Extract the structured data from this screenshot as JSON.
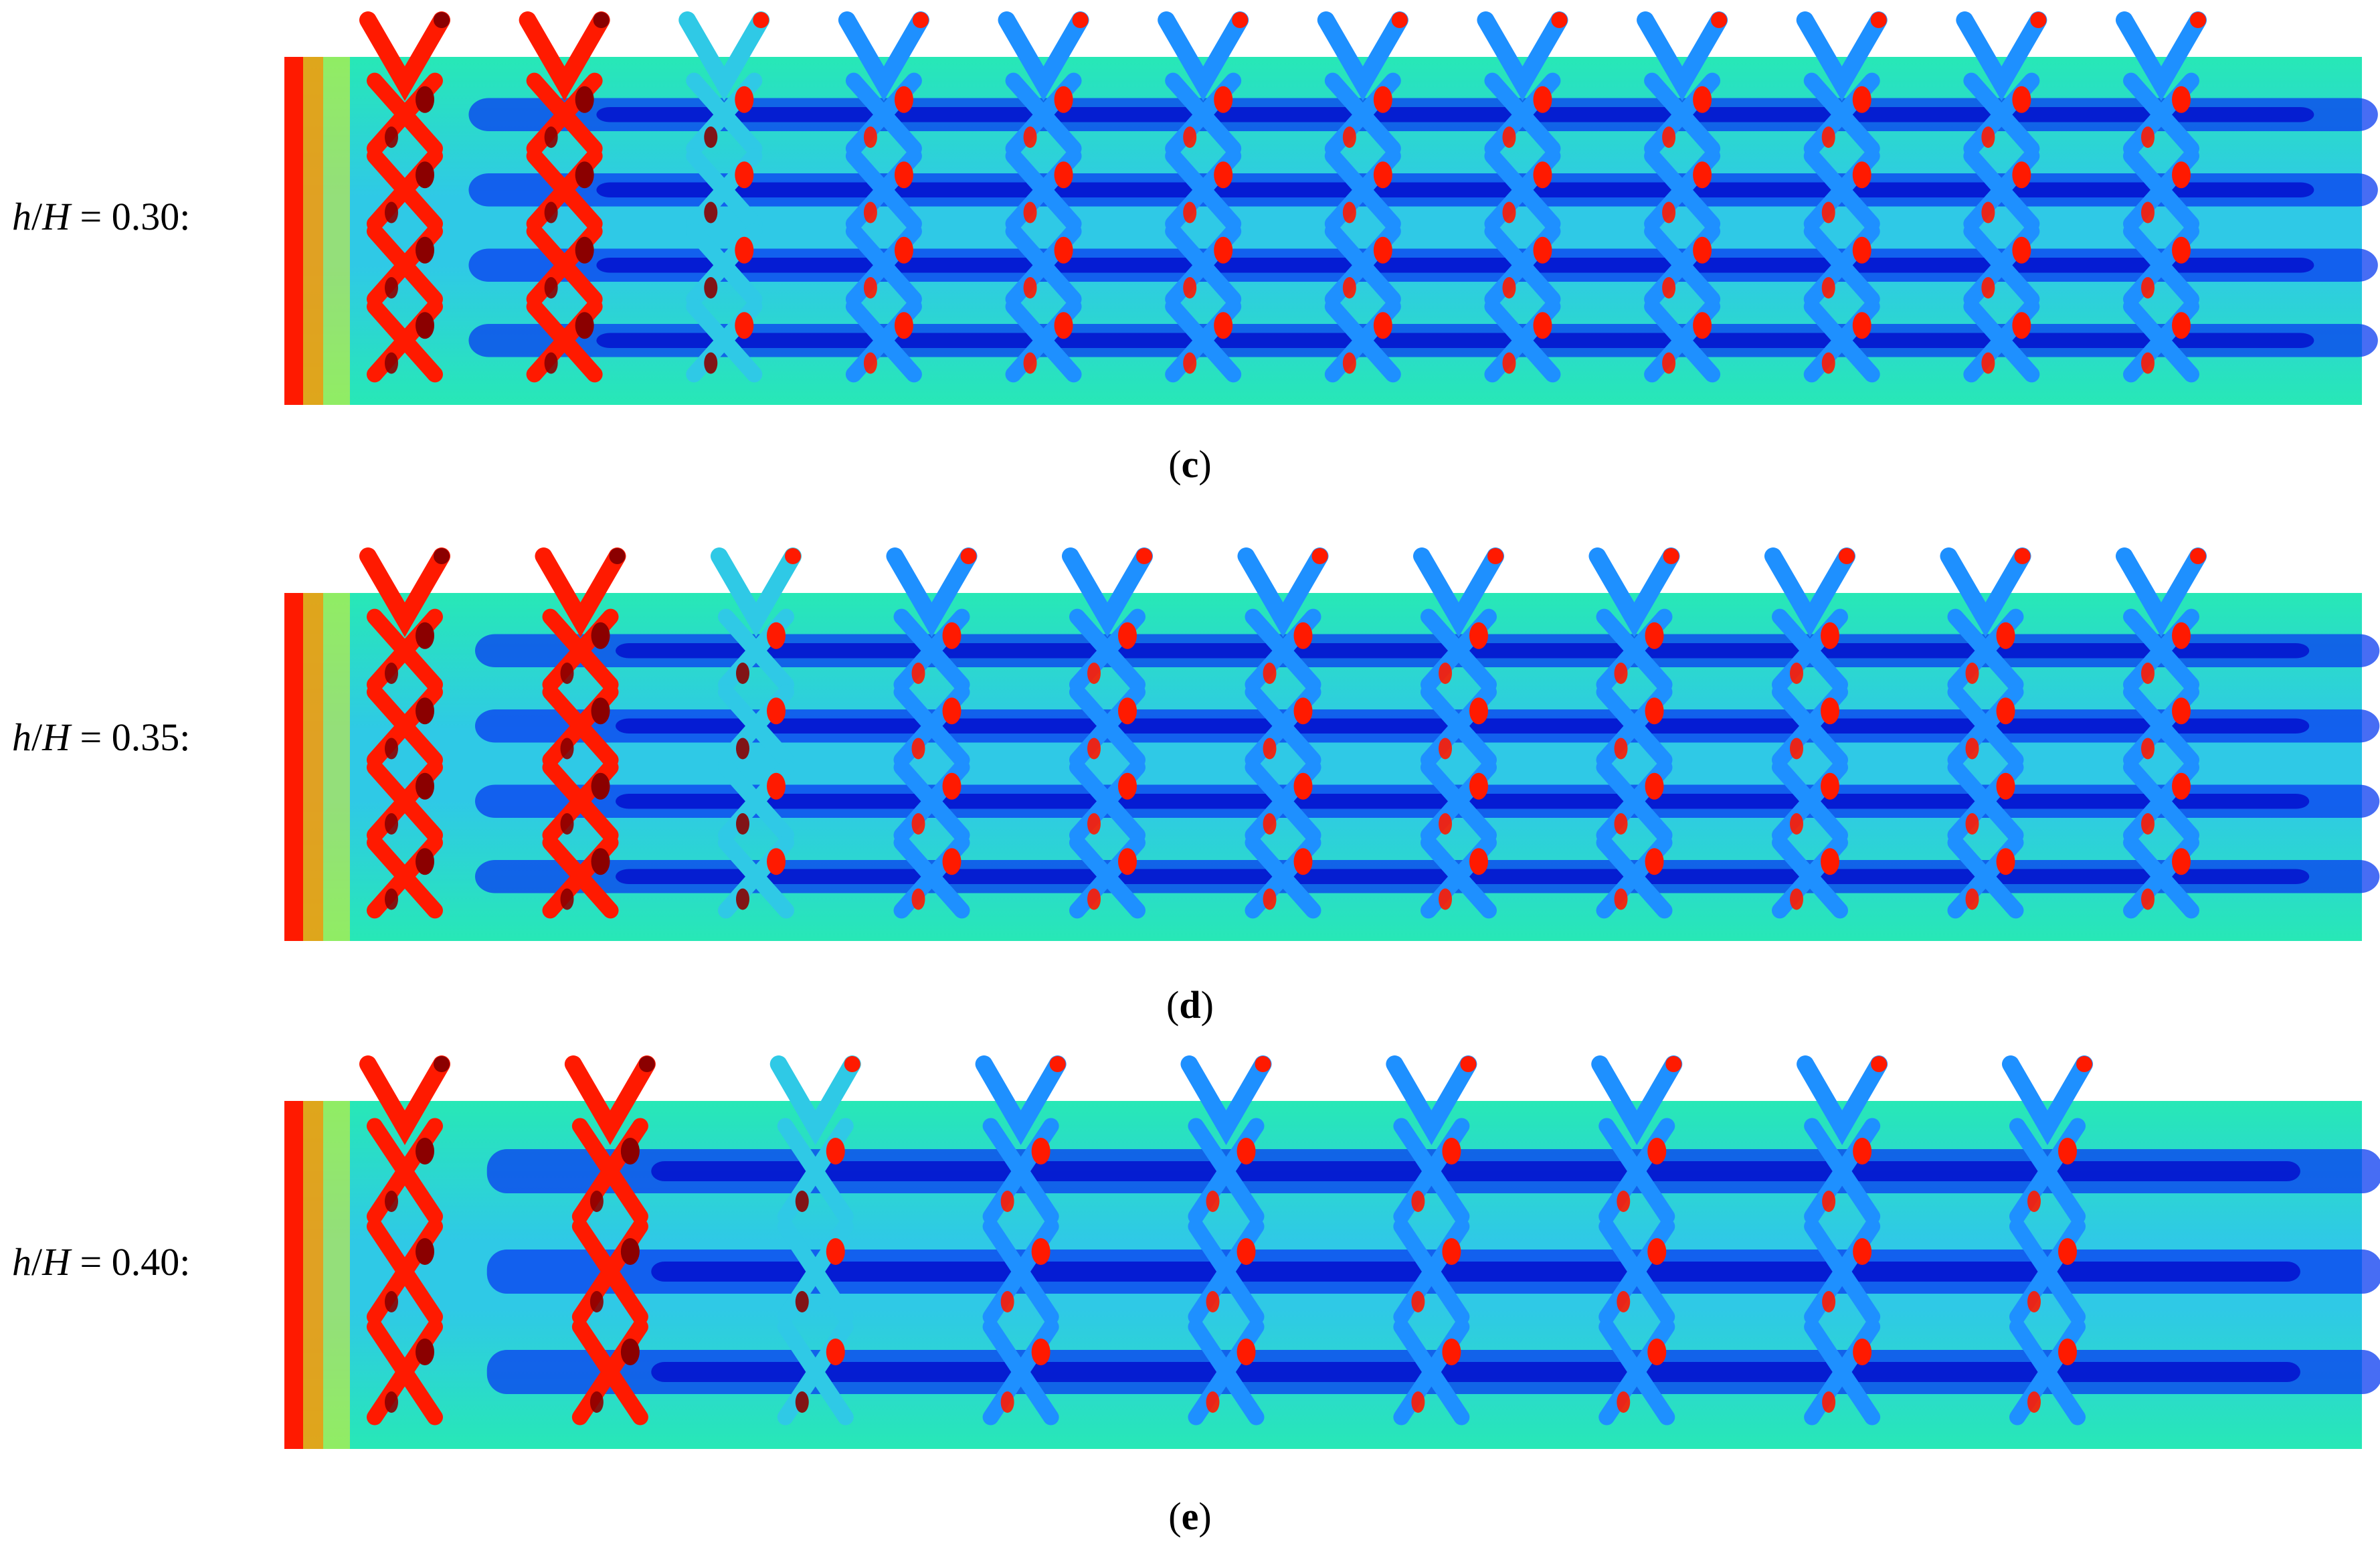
{
  "figure": {
    "panels": [
      {
        "id": "c",
        "label_h": "h",
        "label_H": "H",
        "label_value": " = 0.30:",
        "caption_letter": "c",
        "n_columns": 12,
        "n_rows": 4
      },
      {
        "id": "d",
        "label_h": "h",
        "label_H": "H",
        "label_value": " = 0.35:",
        "caption_letter": "d",
        "n_columns": 11,
        "n_rows": 4
      },
      {
        "id": "e",
        "label_h": "h",
        "label_H": "H",
        "label_value": " = 0.40:",
        "caption_letter": "e",
        "n_columns": 9,
        "n_rows": 3
      }
    ],
    "caption_open": "(",
    "caption_close": ")",
    "colormap": [
      "#0000c8",
      "#0a3cf0",
      "#1e90ff",
      "#2fc9e6",
      "#27e8b6",
      "#7ff05a",
      "#e8f020",
      "#ff9a00",
      "#ff1a00",
      "#8b0000"
    ]
  }
}
